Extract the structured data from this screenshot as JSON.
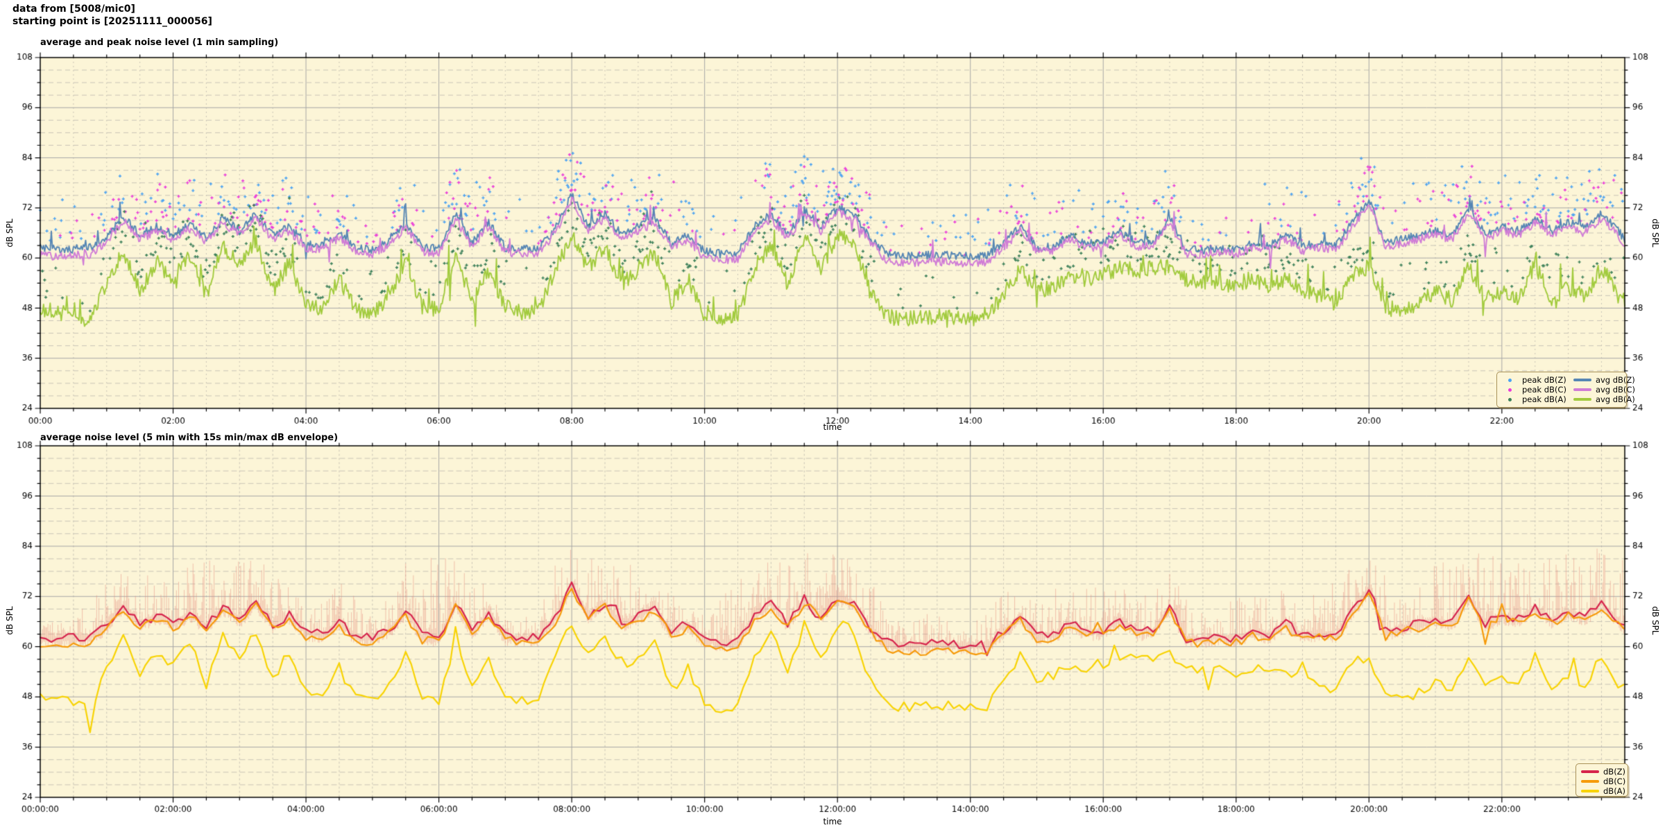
{
  "header": {
    "line1": "data from [5008/mic0]",
    "line2": "starting point is [20251111_000056]"
  },
  "colors": {
    "page_bg": "#ffffff",
    "plot_bg": "#fcf5d7",
    "grid_major": "#a6a6a6",
    "grid_minor": "#c9c4b6",
    "axis": "#000000",
    "legend_border": "#a89158"
  },
  "chart_data": [
    {
      "type": "line+scatter",
      "title": "average and peak noise level (1 min sampling)",
      "xlabel": "time",
      "ylabel_left": "dB SPL",
      "ylabel_right": "dB SPL",
      "ylim": [
        24,
        108
      ],
      "y_major_step": 12,
      "y_minor_step": 3,
      "xlim_hours": [
        0,
        23.85
      ],
      "x_major_step_h": 2,
      "x_minor_step_h": 0.5,
      "grid": true,
      "sampling_minutes": 1,
      "x_ticks": [
        "00:00",
        "02:00",
        "04:00",
        "06:00",
        "08:00",
        "10:00",
        "12:00",
        "14:00",
        "16:00",
        "18:00",
        "20:00",
        "22:00"
      ],
      "y_ticks": [
        "24",
        "36",
        "48",
        "60",
        "72",
        "84",
        "96",
        "108"
      ],
      "legend": {
        "position": "inside bottom-right",
        "columns": 2,
        "entries": [
          {
            "label": "peak dB(Z)",
            "marker": "point",
            "color": "#4aa2f2"
          },
          {
            "label": "peak dB(C)",
            "marker": "point",
            "color": "#ea3cda"
          },
          {
            "label": "peak dB(A)",
            "marker": "point",
            "color": "#3a7f58"
          },
          {
            "label": "avg dB(Z)",
            "marker": "line",
            "color": "#5686b4"
          },
          {
            "label": "avg dB(C)",
            "marker": "line",
            "color": "#d07cd6"
          },
          {
            "label": "avg dB(A)",
            "marker": "line",
            "color": "#a2cb3e"
          }
        ]
      },
      "series": [
        {
          "name": "peak dB(Z)",
          "type": "scatter",
          "color": "#4aa2f2",
          "above_series": "avg dB(Z)",
          "offset_range_db": [
            2.5,
            13
          ],
          "density_per_min": 0.65,
          "rare_extra_db": 9,
          "seed": 101
        },
        {
          "name": "peak dB(C)",
          "type": "scatter",
          "color": "#ea3cda",
          "above_series": "avg dB(C)",
          "offset_range_db": [
            2,
            12.5
          ],
          "density_per_min": 0.6,
          "rare_extra_db": 9,
          "seed": 102
        },
        {
          "name": "peak dB(A)",
          "type": "scatter",
          "color": "#3a7f58",
          "above_series": "avg dB(A)",
          "offset_range_db": [
            2.5,
            11
          ],
          "density_per_min": 0.6,
          "rare_extra_db": 7,
          "seed": 103
        },
        {
          "name": "avg dB(Z)",
          "type": "line",
          "color": "#5686b4",
          "width": 1.9,
          "noise_db": 1.0,
          "spike_prob": 0.018,
          "spike_db": 5,
          "seed": 104,
          "t_step_h": 0.25,
          "values": [
            62.3,
            62,
            62.2,
            62.5,
            65,
            70,
            65.5,
            67.5,
            65.5,
            68,
            65,
            69.5,
            66.5,
            70.5,
            65.5,
            67.5,
            63.5,
            63,
            66,
            62.5,
            62,
            64,
            68.5,
            62.5,
            62.2,
            70.5,
            63.5,
            68.5,
            62.5,
            62,
            62.3,
            67,
            75,
            67.5,
            70.5,
            65.5,
            67.5,
            69.5,
            63.5,
            65.5,
            61.5,
            61,
            61.2,
            67.5,
            70.5,
            65.5,
            71.5,
            67.5,
            72,
            70.5,
            64.5,
            61,
            60.5,
            60.5,
            60.8,
            60.5,
            60.4,
            60.5,
            63.5,
            67.5,
            62.5,
            62.8,
            65.5,
            63.5,
            63.8,
            66.5,
            63.5,
            63.8,
            69.5,
            62,
            61.8,
            62.5,
            62,
            63.5,
            62.8,
            65.5,
            62.8,
            63.5,
            62.8,
            68.5,
            74,
            63.5,
            64.5,
            65.5,
            66.5,
            65.5,
            72,
            65.5,
            67.5,
            66.5,
            69.5,
            66.5,
            68.5,
            67,
            70.5,
            66.5,
            61.5
          ]
        },
        {
          "name": "avg dB(C)",
          "type": "line",
          "color": "#d07cd6",
          "width": 1.9,
          "noise_db": 1.0,
          "spike_prob": 0.018,
          "spike_db": 5,
          "seed": 105,
          "t_step_h": 0.25,
          "values": [
            60.7,
            60.4,
            60.6,
            60.9,
            64,
            69,
            64.5,
            66.5,
            64.5,
            67,
            64,
            68.5,
            65.5,
            69.5,
            64.5,
            66.5,
            62.5,
            62,
            65,
            61.5,
            61,
            63,
            67.5,
            61.5,
            61.2,
            69.5,
            62.5,
            67.5,
            61.5,
            61,
            61.3,
            66,
            74,
            66.5,
            69.5,
            64.5,
            66.5,
            68.5,
            62.5,
            64.5,
            59.9,
            59.4,
            59.6,
            66.5,
            69.5,
            64.5,
            70.5,
            66.5,
            71,
            69.5,
            63.5,
            59.4,
            58.9,
            58.9,
            59.2,
            58.9,
            58.8,
            58.9,
            62.5,
            66.5,
            61.5,
            61.8,
            64.5,
            62.5,
            62.8,
            65.5,
            62.5,
            62.8,
            68.5,
            61,
            60.8,
            61.5,
            61,
            62.5,
            61.8,
            64.5,
            61.8,
            62.5,
            61.8,
            67.5,
            73,
            62.5,
            63.5,
            64.5,
            65.5,
            64.5,
            71,
            64.5,
            66.5,
            65.5,
            68.5,
            65.5,
            67.5,
            66,
            69.5,
            65.5,
            60.2
          ]
        },
        {
          "name": "avg dB(A)",
          "type": "line",
          "color": "#a2cb3e",
          "width": 1.9,
          "noise_db": 1.9,
          "spike_prob": 0.03,
          "spike_db": 6,
          "seed": 106,
          "t_step_h": 0.25,
          "values": [
            48,
            47,
            46.5,
            45,
            54,
            62,
            52,
            59,
            55,
            61,
            51,
            63,
            58,
            64,
            52,
            59,
            49,
            47.5,
            55,
            47.5,
            46.5,
            51,
            59,
            48.5,
            47.5,
            61,
            49.5,
            57,
            48.5,
            47,
            47.5,
            57,
            65.5,
            57.5,
            63,
            53.5,
            57.5,
            61.5,
            49.5,
            55,
            46,
            45.5,
            46,
            57.5,
            63.5,
            53.5,
            65.5,
            57.5,
            65.5,
            63.5,
            51.5,
            46,
            45.5,
            45.5,
            46,
            45.5,
            45.5,
            46,
            51.5,
            57.5,
            52,
            53,
            55.5,
            55,
            56,
            57.5,
            57,
            57.5,
            58,
            55,
            54,
            54.5,
            53,
            55,
            53.5,
            55,
            52,
            51,
            49,
            56,
            58,
            48,
            47.5,
            49,
            52,
            50,
            58,
            50,
            52,
            50,
            58.5,
            50,
            53,
            50.5,
            58,
            51,
            48.5
          ]
        }
      ]
    },
    {
      "type": "line+envelope",
      "title": "average noise level (5 min with 15s min/max dB envelope)",
      "xlabel": "time",
      "ylabel_left": "dB SPL",
      "ylabel_right": "dB SPL",
      "ylim": [
        24,
        108
      ],
      "y_major_step": 12,
      "y_minor_step": 3,
      "xlim_hours": [
        0,
        23.85
      ],
      "x_major_step_h": 2,
      "x_minor_step_h": 0.5,
      "grid": true,
      "sampling_minutes": 5,
      "x_ticks": [
        "00:00:00",
        "02:00:00",
        "04:00:00",
        "06:00:00",
        "08:00:00",
        "10:00:00",
        "12:00:00",
        "14:00:00",
        "16:00:00",
        "18:00:00",
        "20:00:00",
        "22:00:00"
      ],
      "y_ticks": [
        "24",
        "36",
        "48",
        "60",
        "72",
        "84",
        "96",
        "108"
      ],
      "legend": {
        "position": "inside bottom-right",
        "columns": 1,
        "entries": [
          {
            "label": "dB(Z)",
            "marker": "line",
            "color": "#d6234c"
          },
          {
            "label": "dB(C)",
            "marker": "line",
            "color": "#f69a0a"
          },
          {
            "label": "dB(A)",
            "marker": "line",
            "color": "#f8d303"
          }
        ]
      },
      "series": [
        {
          "name": "15s min/max envelope",
          "type": "envelope",
          "color": "#e78b7d",
          "opacity": 0.5,
          "around_series": "dB(Z)",
          "min_drop_db": 2.2,
          "seed": 200,
          "t_step_h": 0.5,
          "max_values": [
            65,
            66,
            76,
            79,
            77,
            81,
            82,
            79,
            70,
            75,
            68,
            80,
            82,
            79,
            67,
            74,
            84,
            82,
            80,
            73,
            67,
            77,
            81,
            82,
            84,
            75,
            64,
            69,
            64,
            77,
            73,
            74,
            74,
            73,
            77,
            68,
            71,
            75,
            73,
            77,
            81,
            74,
            79,
            83,
            81,
            83,
            83,
            84,
            79
          ]
        },
        {
          "name": "dB(Z)",
          "type": "line",
          "color": "#d6234c",
          "width": 2.2,
          "noise_db": 1.1,
          "spike_prob": 0.012,
          "spike_db": 4,
          "seed": 201,
          "t_step_h": 0.25,
          "values": [
            62.3,
            62,
            62.2,
            62.5,
            65,
            70,
            65.5,
            67.5,
            65.5,
            68,
            65,
            69.5,
            66.5,
            70.5,
            65.5,
            67.5,
            63.5,
            63,
            66,
            62.5,
            62,
            64,
            68.5,
            62.5,
            62.2,
            70.5,
            63.5,
            68.5,
            62.5,
            62,
            62.3,
            67,
            75,
            67.5,
            70.5,
            65.5,
            67.5,
            69.5,
            63.5,
            65.5,
            61.5,
            61,
            61.2,
            67.5,
            70.5,
            65.5,
            71.5,
            67.5,
            72,
            70.5,
            64.5,
            61,
            60.5,
            60.5,
            60.8,
            60.5,
            60.4,
            60.5,
            63.5,
            67.5,
            62.5,
            62.8,
            65.5,
            63.5,
            63.8,
            66.5,
            63.5,
            63.8,
            69.5,
            62,
            61.8,
            62.5,
            62,
            63.5,
            62.8,
            65.5,
            62.8,
            63.5,
            62.8,
            68.5,
            74,
            63.5,
            64.5,
            65.5,
            66.5,
            65.5,
            72,
            65.5,
            67.5,
            66.5,
            69.5,
            66.5,
            68.5,
            67,
            70.5,
            66.5,
            61.5
          ]
        },
        {
          "name": "dB(C)",
          "type": "line",
          "color": "#f69a0a",
          "width": 2.2,
          "noise_db": 1.0,
          "spike_prob": 0.012,
          "spike_db": 4,
          "seed": 202,
          "t_step_h": 0.25,
          "values": [
            60.7,
            60.4,
            60.6,
            60.9,
            64,
            69,
            64.5,
            66.5,
            64.5,
            67,
            64,
            68.5,
            65.5,
            69.5,
            64.5,
            66.5,
            62.5,
            62,
            65,
            61.5,
            61,
            63,
            67.5,
            61.5,
            61.2,
            69.5,
            62.5,
            67.5,
            61.5,
            61,
            61.3,
            66,
            74,
            66.5,
            69.5,
            64.5,
            66.5,
            68.5,
            62.5,
            64.5,
            59.9,
            59.4,
            59.6,
            66.5,
            69.5,
            64.5,
            70.5,
            66.5,
            71,
            69.5,
            63.5,
            59.4,
            58.9,
            58.9,
            59.2,
            58.9,
            58.8,
            58.9,
            62.5,
            66.5,
            61.5,
            61.8,
            64.5,
            62.5,
            62.8,
            65.5,
            62.5,
            62.8,
            68.5,
            61,
            60.8,
            61.5,
            61,
            62.5,
            61.8,
            64.5,
            61.8,
            62.5,
            61.8,
            67.5,
            73,
            62.5,
            63.5,
            64.5,
            65.5,
            64.5,
            71,
            64.5,
            66.5,
            65.5,
            68.5,
            65.5,
            67.5,
            66,
            69.5,
            65.5,
            60.2
          ]
        },
        {
          "name": "dB(A)",
          "type": "line",
          "color": "#f8d303",
          "width": 2.2,
          "noise_db": 1.3,
          "spike_prob": 0.02,
          "spike_db": 5,
          "seed": 203,
          "t_step_h": 0.25,
          "values": [
            48,
            47,
            46.5,
            45,
            54,
            62,
            52,
            59,
            55,
            61,
            51,
            63,
            58,
            64,
            52,
            59,
            49,
            47.5,
            55,
            47.5,
            46.5,
            51,
            59,
            48.5,
            47.5,
            61,
            49.5,
            57,
            48.5,
            47,
            47.5,
            57,
            65.5,
            57.5,
            63,
            53.5,
            57.5,
            61.5,
            49.5,
            55,
            46,
            45.5,
            46,
            57.5,
            63.5,
            53.5,
            65.5,
            57.5,
            65.5,
            63.5,
            51.5,
            46,
            45.5,
            45.5,
            46,
            45.5,
            45.5,
            46,
            51.5,
            57.5,
            52,
            53,
            55.5,
            55,
            56,
            57.5,
            57,
            57.5,
            58,
            55,
            54,
            54.5,
            53,
            55,
            53.5,
            55,
            52,
            51,
            49,
            56,
            58,
            48,
            47.5,
            49,
            52,
            50,
            58,
            50,
            52,
            50,
            58.5,
            50,
            53,
            50.5,
            58,
            51,
            48.5
          ]
        }
      ]
    }
  ]
}
